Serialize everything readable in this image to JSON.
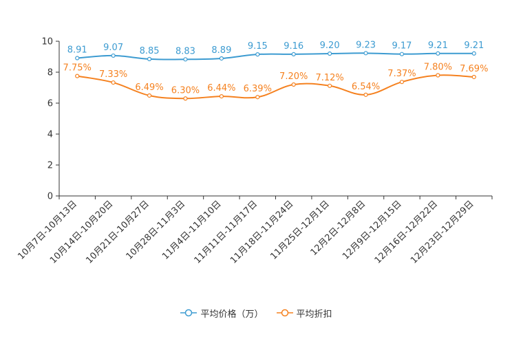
{
  "chart_data": {
    "type": "line",
    "categories": [
      "10月7日-10月13日",
      "10月14日-10月20日",
      "10月21日-10月27日",
      "10月28日-11月3日",
      "11月4日-11月10日",
      "11月11日-11月17日",
      "11月18日-11月24日",
      "11月25日-12月1日",
      "12月2日-12月8日",
      "12月9日-12月15日",
      "12月16日-12月22日",
      "12月23日-12月29日"
    ],
    "ylim": [
      0,
      10
    ],
    "yticks": [
      "0",
      "2",
      "4",
      "6",
      "8",
      "10"
    ],
    "series": [
      {
        "name": "平均价格（万）",
        "color": "#3c9bd1",
        "values": [
          8.91,
          9.07,
          8.85,
          8.83,
          8.89,
          9.15,
          9.16,
          9.2,
          9.23,
          9.17,
          9.21,
          9.21
        ],
        "labels": [
          "8.91",
          "9.07",
          "8.85",
          "8.83",
          "8.89",
          "9.15",
          "9.16",
          "9.20",
          "9.23",
          "9.17",
          "9.21",
          "9.21"
        ]
      },
      {
        "name": "平均折扣",
        "color": "#f5811f",
        "values": [
          7.75,
          7.33,
          6.49,
          6.3,
          6.44,
          6.39,
          7.2,
          7.12,
          6.54,
          7.37,
          7.8,
          7.69
        ],
        "labels": [
          "7.75%",
          "7.33%",
          "6.49%",
          "6.30%",
          "6.44%",
          "6.39%",
          "7.20%",
          "7.12%",
          "6.54%",
          "7.37%",
          "7.80%",
          "7.69%"
        ]
      }
    ],
    "legend": {
      "position": "bottom",
      "items": [
        "平均价格（万）",
        "平均折扣"
      ]
    }
  }
}
